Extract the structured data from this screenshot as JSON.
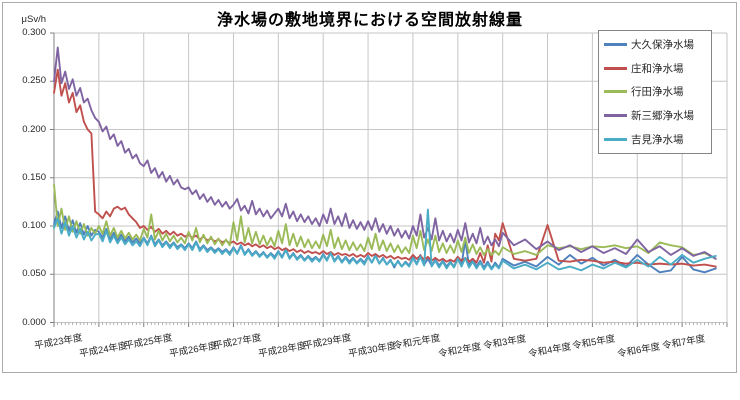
{
  "title": "浄水場の敷地境界における空間放射線量",
  "y_axis": {
    "unit": "μSv/h",
    "ticks": [
      "0.300",
      "0.250",
      "0.200",
      "0.150",
      "0.100",
      "0.050",
      "0.000"
    ]
  },
  "x_axis": {
    "labels": [
      "平成23年度",
      "平成24年度",
      "平成25年度",
      "平成26年度",
      "平成27年度",
      "平成28年度",
      "平成29年度",
      "平成30年度",
      "令和元年度",
      "令和2年度",
      "令和3年度",
      "令和4年度",
      "令和5年度",
      "令和6年度",
      "令和7年度"
    ]
  },
  "legend": {
    "items": [
      {
        "label": "大久保浄水場",
        "color": "#4F81BD"
      },
      {
        "label": "庄和浄水場",
        "color": "#C0504D"
      },
      {
        "label": "行田浄水場",
        "color": "#9BBB59"
      },
      {
        "label": "新三郷浄水場",
        "color": "#8064A2"
      },
      {
        "label": "吉見浄水場",
        "color": "#4BACC6"
      }
    ]
  },
  "chart_data": {
    "type": "line",
    "title": "浄水場の敷地境界における空間放射線量",
    "ylabel": "μSv/h",
    "ylim": [
      0,
      0.3
    ],
    "y_tick_step": 0.05,
    "x_range_years": [
      0,
      15
    ],
    "x_categories": [
      "平成23年度",
      "平成24年度",
      "平成25年度",
      "平成26年度",
      "平成27年度",
      "平成28年度",
      "平成29年度",
      "平成30年度",
      "令和元年度",
      "令和2年度",
      "令和3年度",
      "令和4年度",
      "令和5年度",
      "令和6年度",
      "令和7年度"
    ],
    "grid": true,
    "legend_position": "top-right",
    "x_sampling": {
      "segments": [
        {
          "start": 0,
          "step": 0.083333,
          "count": 120
        },
        {
          "start": 10,
          "step": 0.25,
          "count": 20
        }
      ],
      "note": "monthly 平成23〜令和2, quarterly 令和3〜令和7; x in fiscal-years from 平成23年度"
    },
    "series": [
      {
        "name": "大久保浄水場",
        "key": "okubo",
        "color": "#4F81BD",
        "values": [
          0.102,
          0.115,
          0.098,
          0.11,
          0.095,
          0.106,
          0.093,
          0.103,
          0.091,
          0.1,
          0.09,
          0.096,
          0.094,
          0.088,
          0.097,
          0.086,
          0.093,
          0.085,
          0.091,
          0.084,
          0.089,
          0.083,
          0.087,
          0.082,
          0.088,
          0.082,
          0.09,
          0.081,
          0.086,
          0.08,
          0.084,
          0.079,
          0.083,
          0.078,
          0.081,
          0.077,
          0.082,
          0.077,
          0.084,
          0.076,
          0.08,
          0.075,
          0.078,
          0.074,
          0.077,
          0.073,
          0.076,
          0.072,
          0.078,
          0.072,
          0.08,
          0.071,
          0.076,
          0.07,
          0.074,
          0.069,
          0.073,
          0.068,
          0.072,
          0.068,
          0.074,
          0.068,
          0.076,
          0.067,
          0.072,
          0.066,
          0.07,
          0.065,
          0.069,
          0.065,
          0.068,
          0.064,
          0.071,
          0.065,
          0.073,
          0.064,
          0.069,
          0.063,
          0.068,
          0.063,
          0.067,
          0.062,
          0.066,
          0.062,
          0.069,
          0.062,
          0.07,
          0.061,
          0.067,
          0.06,
          0.065,
          0.057,
          0.064,
          0.058,
          0.063,
          0.059,
          0.068,
          0.061,
          0.07,
          0.06,
          0.066,
          0.059,
          0.065,
          0.059,
          0.064,
          0.058,
          0.063,
          0.058,
          0.067,
          0.06,
          0.085,
          0.059,
          0.065,
          0.058,
          0.064,
          0.057,
          0.063,
          0.056,
          0.062,
          0.057,
          0.066,
          0.059,
          0.063,
          0.058,
          0.068,
          0.06,
          0.07,
          0.061,
          0.067,
          0.059,
          0.065,
          0.058,
          0.07,
          0.06,
          0.052,
          0.054,
          0.068,
          0.055,
          0.052,
          0.056
        ]
      },
      {
        "name": "庄和浄水場",
        "key": "showa",
        "color": "#C0504D",
        "values": [
          0.238,
          0.262,
          0.235,
          0.248,
          0.228,
          0.238,
          0.218,
          0.225,
          0.208,
          0.2,
          0.196,
          0.115,
          0.112,
          0.108,
          0.115,
          0.11,
          0.118,
          0.12,
          0.117,
          0.119,
          0.112,
          0.108,
          0.104,
          0.098,
          0.1,
          0.096,
          0.099,
          0.094,
          0.097,
          0.092,
          0.095,
          0.091,
          0.094,
          0.09,
          0.092,
          0.089,
          0.091,
          0.088,
          0.09,
          0.086,
          0.089,
          0.085,
          0.087,
          0.084,
          0.086,
          0.083,
          0.085,
          0.082,
          0.084,
          0.081,
          0.083,
          0.08,
          0.082,
          0.079,
          0.081,
          0.078,
          0.08,
          0.077,
          0.079,
          0.076,
          0.078,
          0.075,
          0.077,
          0.074,
          0.076,
          0.073,
          0.075,
          0.072,
          0.074,
          0.072,
          0.073,
          0.071,
          0.074,
          0.071,
          0.073,
          0.07,
          0.072,
          0.07,
          0.071,
          0.069,
          0.071,
          0.068,
          0.07,
          0.068,
          0.072,
          0.069,
          0.071,
          0.068,
          0.07,
          0.067,
          0.069,
          0.066,
          0.068,
          0.066,
          0.067,
          0.065,
          0.07,
          0.066,
          0.069,
          0.065,
          0.068,
          0.064,
          0.067,
          0.064,
          0.066,
          0.063,
          0.065,
          0.063,
          0.068,
          0.064,
          0.067,
          0.063,
          0.066,
          0.062,
          0.072,
          0.062,
          0.08,
          0.063,
          0.092,
          0.085,
          0.103,
          0.066,
          0.064,
          0.066,
          0.101,
          0.064,
          0.063,
          0.065,
          0.064,
          0.062,
          0.063,
          0.061,
          0.062,
          0.06,
          0.061,
          0.06,
          0.061,
          0.059,
          0.06,
          0.058
        ]
      },
      {
        "name": "行田浄水場",
        "key": "gyoda",
        "color": "#9BBB59",
        "values": [
          0.143,
          0.1,
          0.118,
          0.096,
          0.11,
          0.094,
          0.105,
          0.092,
          0.102,
          0.09,
          0.098,
          0.092,
          0.1,
          0.092,
          0.105,
          0.09,
          0.098,
          0.088,
          0.095,
          0.087,
          0.093,
          0.086,
          0.091,
          0.085,
          0.097,
          0.088,
          0.112,
          0.086,
          0.095,
          0.085,
          0.092,
          0.084,
          0.09,
          0.083,
          0.088,
          0.082,
          0.094,
          0.085,
          0.098,
          0.083,
          0.091,
          0.082,
          0.089,
          0.081,
          0.087,
          0.08,
          0.086,
          0.08,
          0.104,
          0.085,
          0.11,
          0.083,
          0.098,
          0.082,
          0.094,
          0.081,
          0.09,
          0.08,
          0.088,
          0.079,
          0.095,
          0.082,
          0.102,
          0.08,
          0.092,
          0.079,
          0.089,
          0.078,
          0.086,
          0.077,
          0.084,
          0.077,
          0.091,
          0.079,
          0.096,
          0.077,
          0.088,
          0.076,
          0.085,
          0.075,
          0.083,
          0.075,
          0.081,
          0.074,
          0.088,
          0.076,
          0.092,
          0.075,
          0.085,
          0.074,
          0.082,
          0.073,
          0.08,
          0.072,
          0.078,
          0.072,
          0.09,
          0.077,
          0.095,
          0.075,
          0.086,
          0.074,
          0.09,
          0.073,
          0.082,
          0.072,
          0.08,
          0.072,
          0.085,
          0.073,
          0.088,
          0.072,
          0.081,
          0.071,
          0.078,
          0.07,
          0.076,
          0.07,
          0.074,
          0.07,
          0.078,
          0.071,
          0.074,
          0.07,
          0.08,
          0.077,
          0.079,
          0.076,
          0.079,
          0.078,
          0.08,
          0.077,
          0.079,
          0.072,
          0.083,
          0.08,
          0.078,
          0.07,
          0.072,
          0.066
        ]
      },
      {
        "name": "新三郷浄水場",
        "key": "shinmisato",
        "color": "#8064A2",
        "values": [
          0.25,
          0.285,
          0.248,
          0.26,
          0.242,
          0.252,
          0.235,
          0.243,
          0.228,
          0.232,
          0.22,
          0.212,
          0.208,
          0.198,
          0.203,
          0.19,
          0.195,
          0.183,
          0.188,
          0.176,
          0.18,
          0.17,
          0.174,
          0.165,
          0.162,
          0.168,
          0.155,
          0.16,
          0.15,
          0.156,
          0.146,
          0.152,
          0.143,
          0.148,
          0.14,
          0.138,
          0.14,
          0.133,
          0.137,
          0.128,
          0.133,
          0.125,
          0.13,
          0.122,
          0.127,
          0.12,
          0.125,
          0.118,
          0.122,
          0.128,
          0.116,
          0.121,
          0.113,
          0.126,
          0.112,
          0.118,
          0.11,
          0.116,
          0.108,
          0.113,
          0.118,
          0.11,
          0.123,
          0.108,
          0.115,
          0.105,
          0.112,
          0.104,
          0.11,
          0.102,
          0.108,
          0.1,
          0.112,
          0.103,
          0.118,
          0.102,
          0.11,
          0.1,
          0.113,
          0.098,
          0.106,
          0.097,
          0.104,
          0.096,
          0.105,
          0.096,
          0.108,
          0.094,
          0.102,
          0.092,
          0.1,
          0.09,
          0.097,
          0.088,
          0.095,
          0.087,
          0.1,
          0.09,
          0.112,
          0.088,
          0.098,
          0.086,
          0.108,
          0.085,
          0.095,
          0.084,
          0.092,
          0.083,
          0.096,
          0.085,
          0.103,
          0.083,
          0.092,
          0.082,
          0.098,
          0.081,
          0.089,
          0.08,
          0.086,
          0.079,
          0.093,
          0.08,
          0.086,
          0.076,
          0.084,
          0.075,
          0.08,
          0.073,
          0.079,
          0.072,
          0.077,
          0.071,
          0.086,
          0.073,
          0.079,
          0.07,
          0.077,
          0.069,
          0.073,
          0.066
        ]
      },
      {
        "name": "吉見浄水場",
        "key": "yoshimi",
        "color": "#4BACC6",
        "values": [
          0.098,
          0.108,
          0.092,
          0.104,
          0.09,
          0.1,
          0.088,
          0.097,
          0.086,
          0.094,
          0.085,
          0.091,
          0.092,
          0.084,
          0.095,
          0.083,
          0.09,
          0.082,
          0.088,
          0.081,
          0.086,
          0.08,
          0.084,
          0.079,
          0.087,
          0.08,
          0.089,
          0.079,
          0.085,
          0.078,
          0.083,
          0.077,
          0.082,
          0.076,
          0.08,
          0.075,
          0.081,
          0.075,
          0.083,
          0.074,
          0.079,
          0.073,
          0.077,
          0.072,
          0.076,
          0.071,
          0.075,
          0.07,
          0.077,
          0.071,
          0.079,
          0.07,
          0.075,
          0.069,
          0.073,
          0.068,
          0.072,
          0.067,
          0.071,
          0.066,
          0.073,
          0.067,
          0.075,
          0.066,
          0.071,
          0.065,
          0.069,
          0.064,
          0.068,
          0.063,
          0.067,
          0.063,
          0.07,
          0.064,
          0.072,
          0.063,
          0.068,
          0.062,
          0.067,
          0.061,
          0.066,
          0.061,
          0.065,
          0.06,
          0.068,
          0.062,
          0.069,
          0.061,
          0.066,
          0.06,
          0.064,
          0.059,
          0.063,
          0.058,
          0.062,
          0.058,
          0.067,
          0.06,
          0.068,
          0.059,
          0.117,
          0.058,
          0.064,
          0.057,
          0.063,
          0.056,
          0.062,
          0.057,
          0.066,
          0.058,
          0.067,
          0.057,
          0.063,
          0.056,
          0.062,
          0.055,
          0.061,
          0.055,
          0.06,
          0.056,
          0.064,
          0.056,
          0.06,
          0.055,
          0.062,
          0.055,
          0.058,
          0.054,
          0.06,
          0.056,
          0.062,
          0.057,
          0.065,
          0.058,
          0.068,
          0.06,
          0.07,
          0.062,
          0.066,
          0.069
        ]
      }
    ],
    "colors": {
      "gridline": "#C6C6C6",
      "axis": "#808080",
      "frame": "#ABABAB"
    }
  }
}
